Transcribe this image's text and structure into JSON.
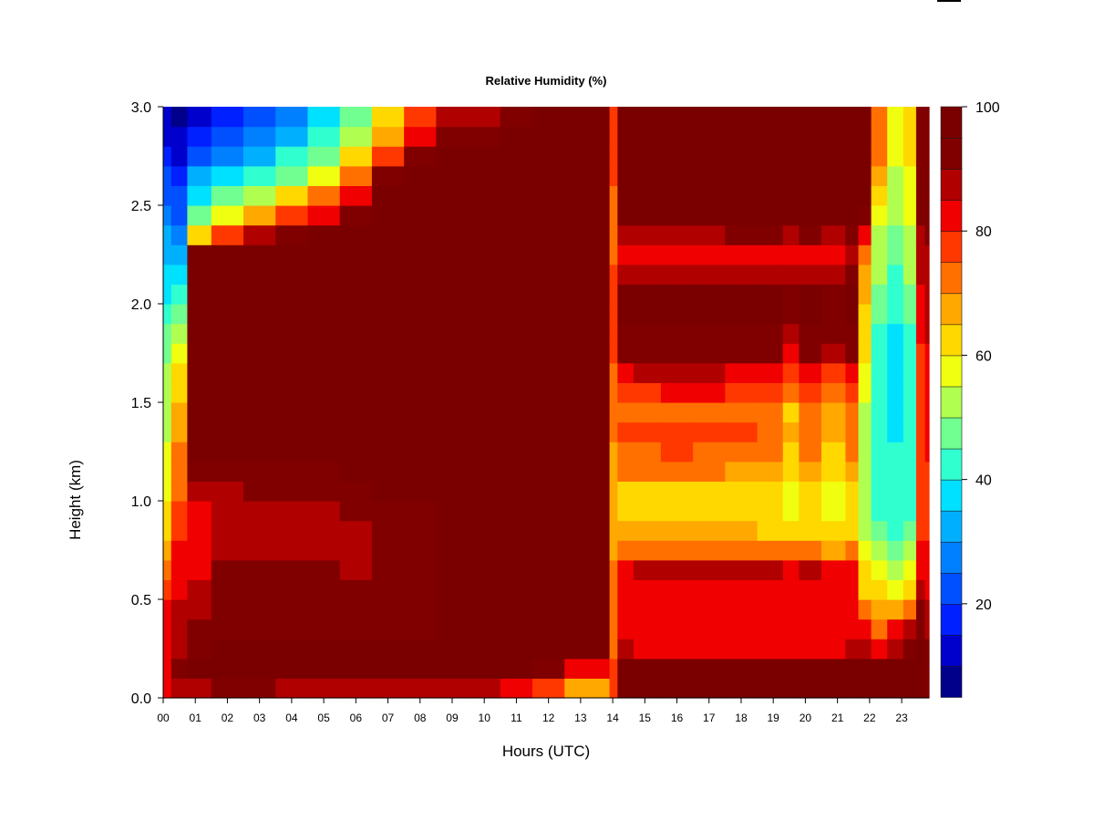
{
  "chart_data": {
    "type": "heatmap",
    "title": "Relative Humidity (%)",
    "xlabel": "Hours (UTC)",
    "ylabel": "Height (km)",
    "x_ticks": [
      "00",
      "01",
      "02",
      "03",
      "04",
      "05",
      "06",
      "07",
      "08",
      "09",
      "10",
      "11",
      "12",
      "13",
      "14",
      "15",
      "16",
      "17",
      "18",
      "19",
      "20",
      "21",
      "22",
      "23"
    ],
    "x_range": [
      0,
      23.85
    ],
    "y_ticks": [
      "0.0",
      "0.5",
      "1.0",
      "1.5",
      "2.0",
      "2.5",
      "3.0"
    ],
    "y_range": [
      0,
      3.0
    ],
    "colorbar": {
      "range": [
        5,
        100
      ],
      "step": 5,
      "tick_labels": [
        "20",
        "40",
        "60",
        "80",
        "100"
      ],
      "colors": [
        "#00008b",
        "#0000cd",
        "#0020ff",
        "#0050ff",
        "#0080ff",
        "#00b0ff",
        "#00e0ff",
        "#30ffd0",
        "#70ff90",
        "#b0ff50",
        "#f0ff10",
        "#ffd800",
        "#ffa800",
        "#ff7000",
        "#ff3800",
        "#f00000",
        "#b00000",
        "#800000",
        "#7a0000"
      ]
    },
    "grid": false,
    "heights_km": [
      0.05,
      0.15,
      0.25,
      0.35,
      0.45,
      0.55,
      0.65,
      0.75,
      0.85,
      0.95,
      1.05,
      1.15,
      1.25,
      1.35,
      1.45,
      1.55,
      1.65,
      1.75,
      1.85,
      1.95,
      2.05,
      2.15,
      2.25,
      2.35,
      2.45,
      2.55,
      2.65,
      2.75,
      2.85,
      2.95
    ],
    "profiles": [
      {
        "hour": 0.0,
        "rh": [
          80,
          82,
          80,
          80,
          80,
          75,
          70,
          66,
          62,
          60,
          58,
          56,
          56,
          54,
          54,
          52,
          50,
          48,
          45,
          42,
          38,
          35,
          32,
          30,
          28,
          24,
          20,
          16,
          12,
          10
        ]
      },
      {
        "hour": 0.5,
        "rh": [
          85,
          90,
          88,
          86,
          85,
          84,
          82,
          80,
          78,
          75,
          72,
          70,
          70,
          68,
          66,
          64,
          62,
          58,
          52,
          46,
          40,
          36,
          32,
          28,
          24,
          20,
          16,
          12,
          10,
          8
        ]
      },
      {
        "hour": 1.0,
        "rh": [
          88,
          95,
          93,
          90,
          88,
          86,
          84,
          82,
          80,
          82,
          85,
          90,
          95,
          100,
          100,
          100,
          100,
          100,
          100,
          100,
          100,
          100,
          96,
          60,
          45,
          36,
          30,
          24,
          18,
          14
        ]
      },
      {
        "hour": 2.0,
        "rh": [
          90,
          96,
          95,
          92,
          92,
          90,
          90,
          88,
          86,
          85,
          88,
          92,
          96,
          100,
          100,
          100,
          100,
          100,
          100,
          100,
          100,
          100,
          98,
          78,
          58,
          45,
          36,
          28,
          22,
          16
        ]
      },
      {
        "hour": 3.0,
        "rh": [
          90,
          96,
          96,
          92,
          94,
          92,
          92,
          88,
          86,
          86,
          90,
          94,
          97,
          100,
          100,
          100,
          100,
          100,
          100,
          100,
          100,
          100,
          100,
          88,
          68,
          50,
          40,
          32,
          26,
          20
        ]
      },
      {
        "hour": 4.0,
        "rh": [
          88,
          96,
          96,
          92,
          94,
          92,
          90,
          88,
          86,
          86,
          90,
          94,
          97,
          100,
          100,
          100,
          100,
          100,
          100,
          100,
          100,
          100,
          100,
          94,
          78,
          60,
          48,
          40,
          34,
          28
        ]
      },
      {
        "hour": 5.0,
        "rh": [
          88,
          96,
          95,
          92,
          93,
          92,
          90,
          88,
          86,
          86,
          90,
          94,
          97,
          100,
          100,
          100,
          100,
          100,
          100,
          100,
          100,
          100,
          100,
          96,
          84,
          70,
          58,
          48,
          42,
          36
        ]
      },
      {
        "hour": 6.0,
        "rh": [
          88,
          95,
          95,
          92,
          92,
          90,
          88,
          88,
          88,
          90,
          94,
          97,
          100,
          100,
          100,
          100,
          100,
          100,
          100,
          100,
          100,
          100,
          100,
          98,
          92,
          82,
          70,
          60,
          52,
          46
        ]
      },
      {
        "hour": 7.0,
        "rh": [
          88,
          95,
          95,
          92,
          92,
          90,
          90,
          90,
          90,
          92,
          95,
          98,
          100,
          100,
          100,
          100,
          100,
          100,
          100,
          100,
          100,
          100,
          100,
          100,
          100,
          98,
          90,
          78,
          68,
          60
        ]
      },
      {
        "hour": 8.0,
        "rh": [
          88,
          95,
          95,
          92,
          92,
          90,
          90,
          90,
          92,
          94,
          96,
          98,
          100,
          100,
          100,
          100,
          100,
          100,
          100,
          100,
          100,
          100,
          100,
          100,
          100,
          100,
          98,
          92,
          84,
          78
        ]
      },
      {
        "hour": 9.0,
        "rh": [
          86,
          96,
          96,
          100,
          100,
          100,
          100,
          100,
          100,
          100,
          100,
          100,
          100,
          100,
          100,
          100,
          100,
          100,
          100,
          100,
          100,
          100,
          100,
          100,
          100,
          100,
          100,
          96,
          90,
          86
        ]
      },
      {
        "hour": 10.0,
        "rh": [
          88,
          100,
          100,
          100,
          100,
          100,
          100,
          100,
          100,
          100,
          100,
          100,
          100,
          100,
          100,
          100,
          100,
          100,
          100,
          100,
          100,
          100,
          100,
          100,
          100,
          100,
          100,
          98,
          92,
          88
        ]
      },
      {
        "hour": 11.0,
        "rh": [
          84,
          95,
          100,
          100,
          100,
          100,
          100,
          100,
          100,
          100,
          100,
          100,
          100,
          100,
          100,
          100,
          100,
          100,
          100,
          100,
          100,
          100,
          100,
          100,
          100,
          100,
          100,
          100,
          98,
          94
        ]
      },
      {
        "hour": 12.0,
        "rh": [
          76,
          90,
          100,
          100,
          100,
          100,
          100,
          100,
          100,
          100,
          100,
          100,
          100,
          100,
          100,
          100,
          100,
          100,
          100,
          100,
          100,
          100,
          100,
          100,
          100,
          100,
          100,
          100,
          100,
          100
        ]
      },
      {
        "hour": 13.0,
        "rh": [
          68,
          82,
          100,
          100,
          100,
          100,
          100,
          100,
          100,
          100,
          100,
          100,
          100,
          100,
          100,
          100,
          100,
          100,
          100,
          100,
          100,
          100,
          100,
          100,
          100,
          100,
          100,
          100,
          100,
          100
        ]
      },
      {
        "hour": 13.8,
        "rh": [
          66,
          80,
          98,
          100,
          100,
          100,
          100,
          100,
          100,
          100,
          100,
          100,
          100,
          100,
          100,
          100,
          100,
          100,
          100,
          100,
          100,
          100,
          100,
          100,
          100,
          100,
          100,
          100,
          100,
          100
        ]
      },
      {
        "hour": 14.0,
        "rh": [
          76,
          76,
          74,
          72,
          70,
          70,
          70,
          68,
          68,
          66,
          66,
          68,
          68,
          70,
          70,
          72,
          74,
          76,
          78,
          78,
          78,
          76,
          74,
          72,
          72,
          74,
          76,
          78,
          78,
          78
        ]
      },
      {
        "hour": 14.3,
        "rh": [
          100,
          100,
          86,
          84,
          82,
          82,
          84,
          74,
          68,
          62,
          62,
          70,
          74,
          76,
          72,
          78,
          84,
          90,
          92,
          98,
          96,
          88,
          84,
          86,
          100,
          100,
          100,
          100,
          100,
          100
        ]
      },
      {
        "hour": 15.0,
        "rh": [
          100,
          100,
          84,
          84,
          82,
          84,
          88,
          74,
          66,
          60,
          60,
          70,
          74,
          76,
          72,
          78,
          86,
          92,
          92,
          98,
          96,
          86,
          80,
          86,
          100,
          100,
          100,
          100,
          100,
          100
        ]
      },
      {
        "hour": 16.0,
        "rh": [
          100,
          100,
          84,
          84,
          82,
          84,
          88,
          74,
          66,
          62,
          60,
          70,
          76,
          78,
          72,
          80,
          86,
          92,
          92,
          98,
          96,
          86,
          80,
          86,
          100,
          100,
          100,
          100,
          100,
          100
        ]
      },
      {
        "hour": 17.0,
        "rh": [
          100,
          100,
          84,
          84,
          82,
          84,
          88,
          74,
          66,
          62,
          62,
          70,
          74,
          78,
          72,
          80,
          86,
          92,
          92,
          98,
          96,
          88,
          82,
          88,
          100,
          100,
          100,
          100,
          100,
          100
        ]
      },
      {
        "hour": 18.0,
        "rh": [
          100,
          100,
          84,
          84,
          82,
          84,
          86,
          74,
          66,
          62,
          62,
          68,
          72,
          76,
          70,
          78,
          84,
          92,
          92,
          96,
          96,
          88,
          84,
          90,
          100,
          100,
          100,
          100,
          100,
          100
        ]
      },
      {
        "hour": 19.0,
        "rh": [
          100,
          100,
          82,
          82,
          80,
          84,
          86,
          72,
          64,
          60,
          60,
          66,
          70,
          74,
          70,
          76,
          82,
          90,
          92,
          96,
          96,
          88,
          84,
          90,
          100,
          100,
          100,
          100,
          100,
          100
        ]
      },
      {
        "hour": 19.6,
        "rh": [
          100,
          100,
          82,
          82,
          82,
          84,
          84,
          72,
          62,
          56,
          56,
          62,
          64,
          66,
          64,
          70,
          76,
          84,
          88,
          92,
          92,
          86,
          84,
          88,
          96,
          98,
          100,
          100,
          100,
          100
        ]
      },
      {
        "hour": 20.0,
        "rh": [
          100,
          100,
          84,
          84,
          82,
          84,
          86,
          72,
          64,
          60,
          60,
          66,
          70,
          74,
          70,
          76,
          82,
          90,
          92,
          96,
          96,
          88,
          84,
          90,
          100,
          100,
          100,
          100,
          100,
          100
        ]
      },
      {
        "hour": 21.0,
        "rh": [
          100,
          100,
          84,
          82,
          80,
          80,
          82,
          68,
          60,
          56,
          56,
          62,
          64,
          68,
          66,
          72,
          78,
          86,
          90,
          94,
          94,
          86,
          84,
          88,
          96,
          98,
          100,
          100,
          100,
          100
        ]
      },
      {
        "hour": 21.5,
        "rh": [
          100,
          100,
          86,
          84,
          82,
          82,
          84,
          72,
          64,
          60,
          60,
          66,
          70,
          74,
          72,
          78,
          84,
          90,
          92,
          96,
          96,
          90,
          88,
          92,
          100,
          100,
          100,
          100,
          100,
          100
        ]
      },
      {
        "hour": 21.8,
        "rh": [
          100,
          100,
          86,
          82,
          74,
          64,
          60,
          56,
          52,
          50,
          50,
          50,
          50,
          52,
          54,
          56,
          58,
          60,
          62,
          64,
          66,
          68,
          72,
          80,
          90,
          96,
          100,
          100,
          100,
          100
        ]
      },
      {
        "hour": 22.3,
        "rh": [
          100,
          96,
          82,
          74,
          66,
          60,
          56,
          50,
          46,
          44,
          44,
          42,
          42,
          40,
          40,
          42,
          42,
          44,
          44,
          46,
          48,
          50,
          52,
          54,
          58,
          62,
          66,
          70,
          72,
          74
        ]
      },
      {
        "hour": 22.8,
        "rh": [
          100,
          96,
          86,
          80,
          66,
          56,
          50,
          46,
          42,
          40,
          40,
          40,
          40,
          38,
          38,
          36,
          36,
          36,
          38,
          40,
          42,
          44,
          46,
          48,
          50,
          52,
          54,
          56,
          56,
          58
        ]
      },
      {
        "hour": 23.3,
        "rh": [
          100,
          100,
          90,
          86,
          72,
          62,
          56,
          50,
          46,
          44,
          44,
          44,
          44,
          44,
          42,
          42,
          42,
          42,
          44,
          46,
          48,
          50,
          52,
          54,
          56,
          58,
          58,
          60,
          60,
          62
        ]
      },
      {
        "hour": 23.6,
        "rh": [
          100,
          100,
          96,
          94,
          90,
          86,
          82,
          80,
          78,
          76,
          76,
          76,
          76,
          76,
          76,
          76,
          76,
          78,
          80,
          82,
          84,
          86,
          88,
          88,
          90,
          90,
          90,
          92,
          92,
          92
        ]
      },
      {
        "hour": 23.85,
        "rh": [
          92,
          92,
          90,
          88,
          86,
          84,
          82,
          80,
          78,
          78,
          78,
          78,
          80,
          80,
          80,
          82,
          82,
          84,
          86,
          86,
          88,
          88,
          88,
          90,
          90,
          90,
          90,
          92,
          92,
          92
        ]
      }
    ]
  }
}
